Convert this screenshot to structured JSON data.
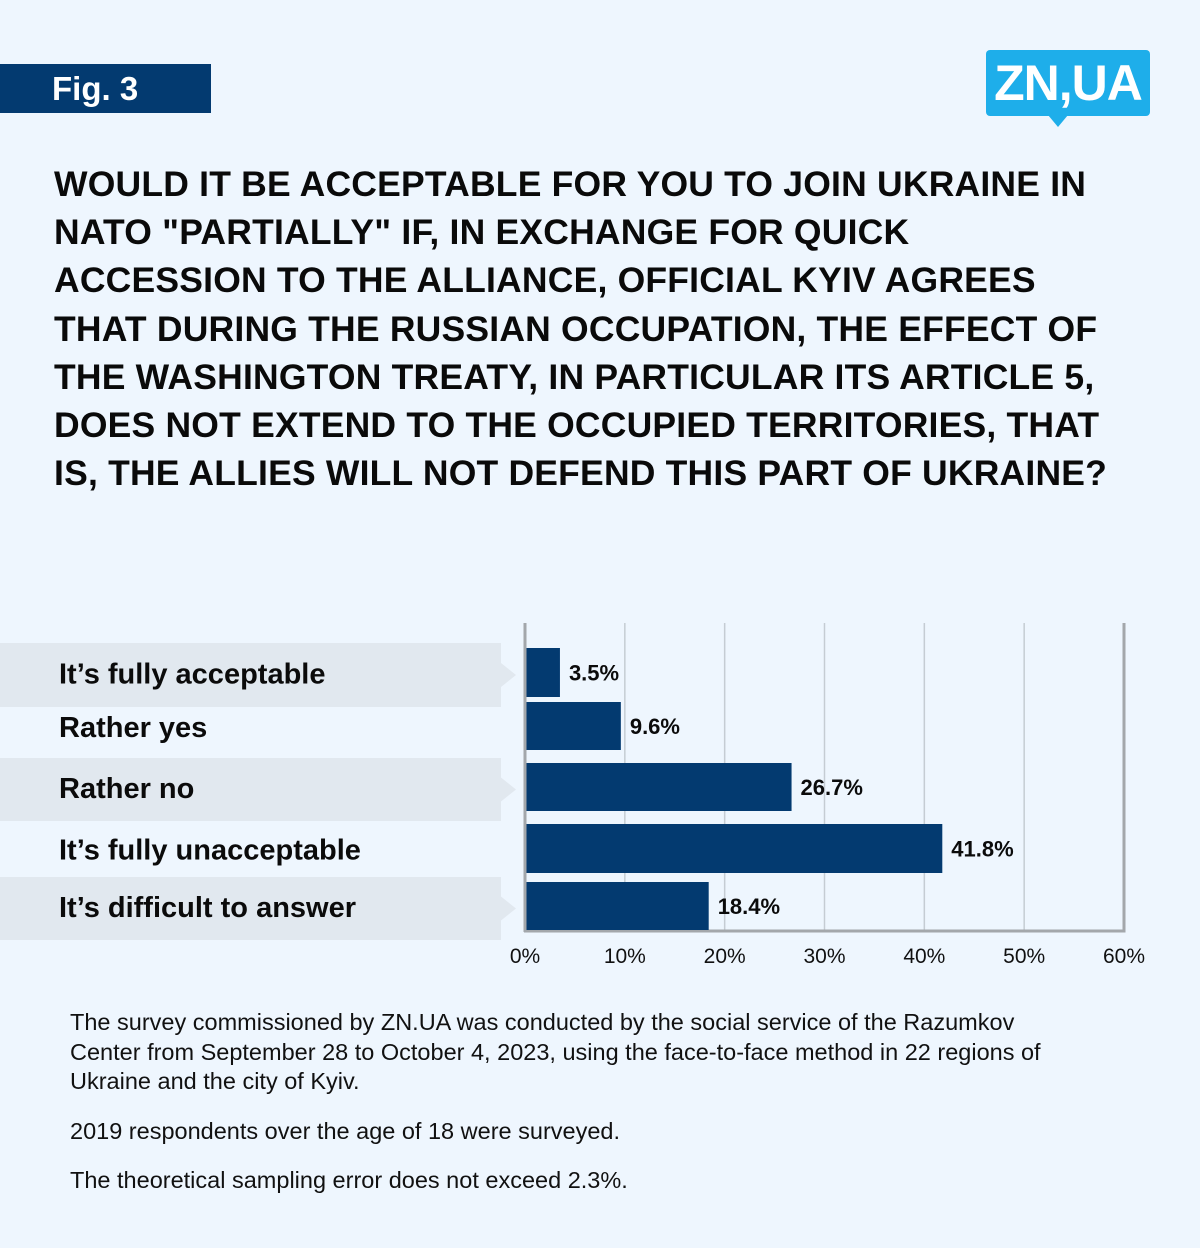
{
  "header": {
    "figure_label": "Fig. 3",
    "logo_text": "ZN,UA"
  },
  "question": "Would it be acceptable for you to join Ukraine in NATO \"partially\" if, in exchange for quick accession to the Alliance, official Kyiv agrees that during the Russian occupation, the effect of the Washington Treaty, in particular its Article 5, does not extend to the occupied territories, that is, the allies will not defend this part of Ukraine?",
  "colors": {
    "bar": "#033a70",
    "badge": "#033a70",
    "logo": "#1eaeea",
    "background": "#eef6fe",
    "label_band": "#e1e8ef",
    "gridline": "#c5ccd3",
    "axis": "#a3a7ab"
  },
  "chart_data": {
    "type": "bar",
    "orientation": "horizontal",
    "title": "Would it be acceptable for you to join Ukraine in NATO \"partially\"...",
    "categories": [
      "It’s fully acceptable",
      "Rather yes",
      "Rather no",
      "It’s fully unacceptable",
      "It’s difficult to answer"
    ],
    "values": [
      3.5,
      9.6,
      26.7,
      41.8,
      18.4
    ],
    "value_labels": [
      "3.5%",
      "9.6%",
      "26.7%",
      "41.8%",
      "18.4%"
    ],
    "unit": "%",
    "xlabel": "",
    "ylabel": "",
    "xlim": [
      0,
      60
    ],
    "x_ticks": [
      0,
      10,
      20,
      30,
      40,
      50,
      60
    ],
    "x_tick_labels": [
      "0%",
      "10%",
      "20%",
      "30%",
      "40%",
      "50%",
      "60%"
    ],
    "grid": true,
    "legend": "none"
  },
  "notes": [
    "The survey commissioned by ZN.UA was conducted by the social service of the Razumkov Center from September 28 to October 4, 2023, using the face-to-face method in 22 regions of Ukraine and the city of Kyiv.",
    "2019 respondents over the age of 18 were surveyed.",
    "The theoretical sampling error does not exceed 2.3%."
  ]
}
